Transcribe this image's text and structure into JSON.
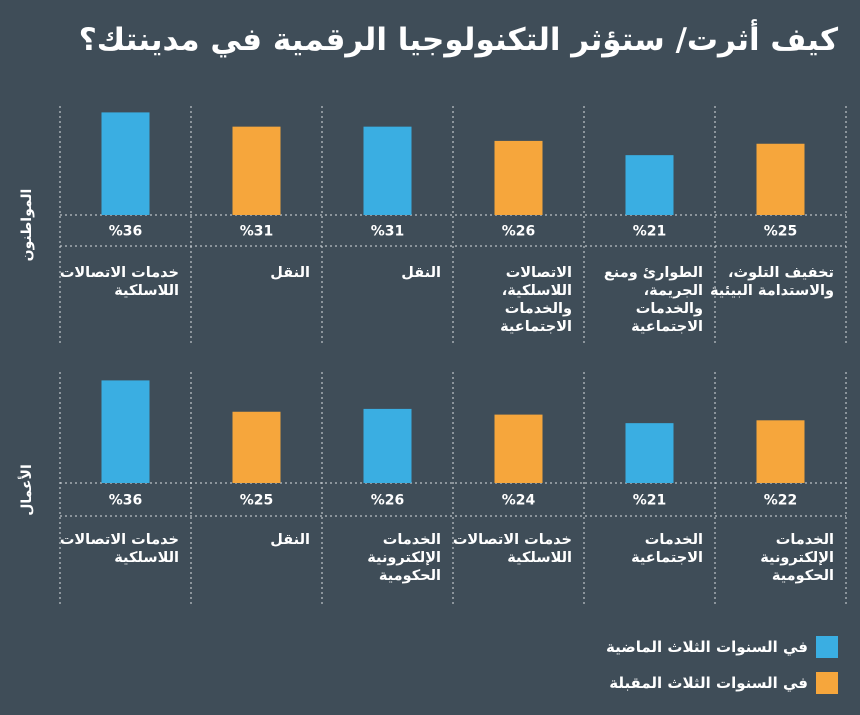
{
  "title": "كيف أثرت/ ستؤثر التكنولوجيا الرقمية في مدينتك؟",
  "colors": {
    "past": "#3aaee2",
    "future": "#f6a63c",
    "background": "#3f4d58"
  },
  "legend": [
    {
      "key": "past",
      "label": "في السنوات الثلاث الماضية"
    },
    {
      "key": "future",
      "label": "في السنوات الثلاث المقبلة"
    }
  ],
  "chart_data": [
    {
      "type": "bar",
      "panel": "المواطنون",
      "categories": [
        [
          "خدمات الاتصالات",
          "اللاسلكية"
        ],
        [
          "النقل"
        ],
        [
          "النقل"
        ],
        [
          "الاتصالات",
          "اللاسلكية،",
          "والخدمات",
          "الاجتماعية"
        ],
        [
          "الطوارئ ومنع",
          "الجريمة،",
          "والخدمات",
          "الاجتماعية"
        ],
        [
          "تخفيف التلوث،",
          "والاستدامة البيئية"
        ]
      ],
      "series_keys": [
        "past",
        "future",
        "past",
        "future",
        "past",
        "future"
      ],
      "values": [
        36,
        31,
        31,
        26,
        21,
        25
      ],
      "labels": [
        "%36",
        "%31",
        "%31",
        "%26",
        "%21",
        "%25"
      ]
    },
    {
      "type": "bar",
      "panel": "الأعمال",
      "categories": [
        [
          "خدمات الاتصالات",
          "اللاسلكية"
        ],
        [
          "النقل"
        ],
        [
          "الخدمات",
          "الإلكترونية",
          "الحكومية"
        ],
        [
          "خدمات الاتصالات",
          "اللاسلكية"
        ],
        [
          "الخدمات",
          "الاجتماعية"
        ],
        [
          "الخدمات",
          "الإلكترونية",
          "الحكومية"
        ]
      ],
      "series_keys": [
        "past",
        "future",
        "past",
        "future",
        "past",
        "future"
      ],
      "values": [
        36,
        25,
        26,
        24,
        21,
        22
      ],
      "labels": [
        "%36",
        "%25",
        "%26",
        "%24",
        "%21",
        "%22"
      ]
    }
  ]
}
